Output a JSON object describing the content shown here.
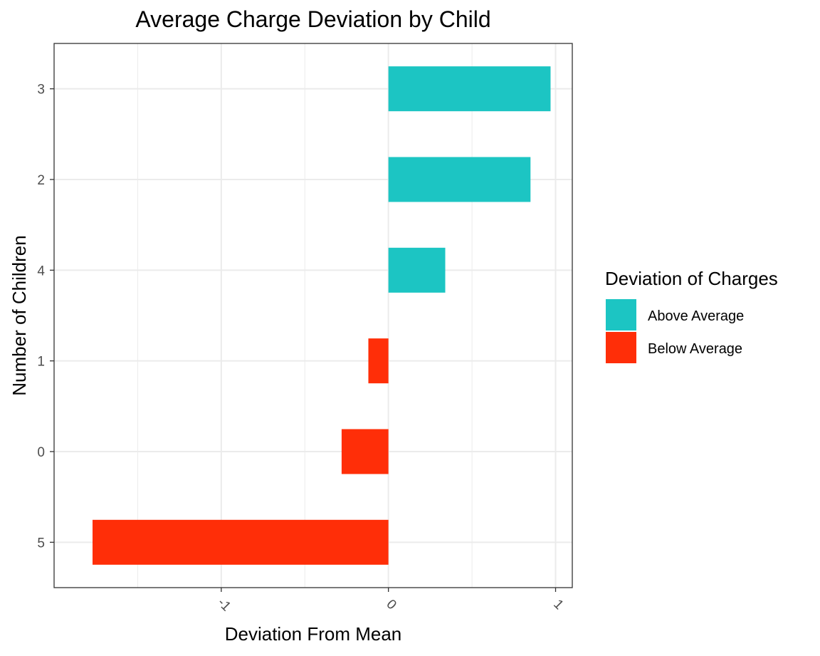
{
  "chart_data": {
    "type": "bar",
    "orientation": "horizontal",
    "title": "Average Charge Deviation by Child",
    "xlabel": "Deviation From Mean",
    "ylabel": "Number of Children",
    "xlim": [
      -2.0,
      1.1
    ],
    "x_ticks": [
      {
        "value": -1,
        "label": "-1"
      },
      {
        "value": 0,
        "label": "0"
      },
      {
        "value": 1,
        "label": "1"
      }
    ],
    "categories": [
      "5",
      "0",
      "1",
      "4",
      "2",
      "3"
    ],
    "values": [
      -1.77,
      -0.28,
      -0.12,
      0.34,
      0.85,
      0.97
    ],
    "groups": [
      "Below Average",
      "Below Average",
      "Below Average",
      "Above Average",
      "Above Average",
      "Above Average"
    ],
    "grid": true,
    "legend": {
      "title": "Deviation of Charges",
      "position": "right",
      "items": [
        {
          "label": "Above Average",
          "color": "#1CC5C3"
        },
        {
          "label": "Below Average",
          "color": "#FF2E08"
        }
      ]
    }
  }
}
